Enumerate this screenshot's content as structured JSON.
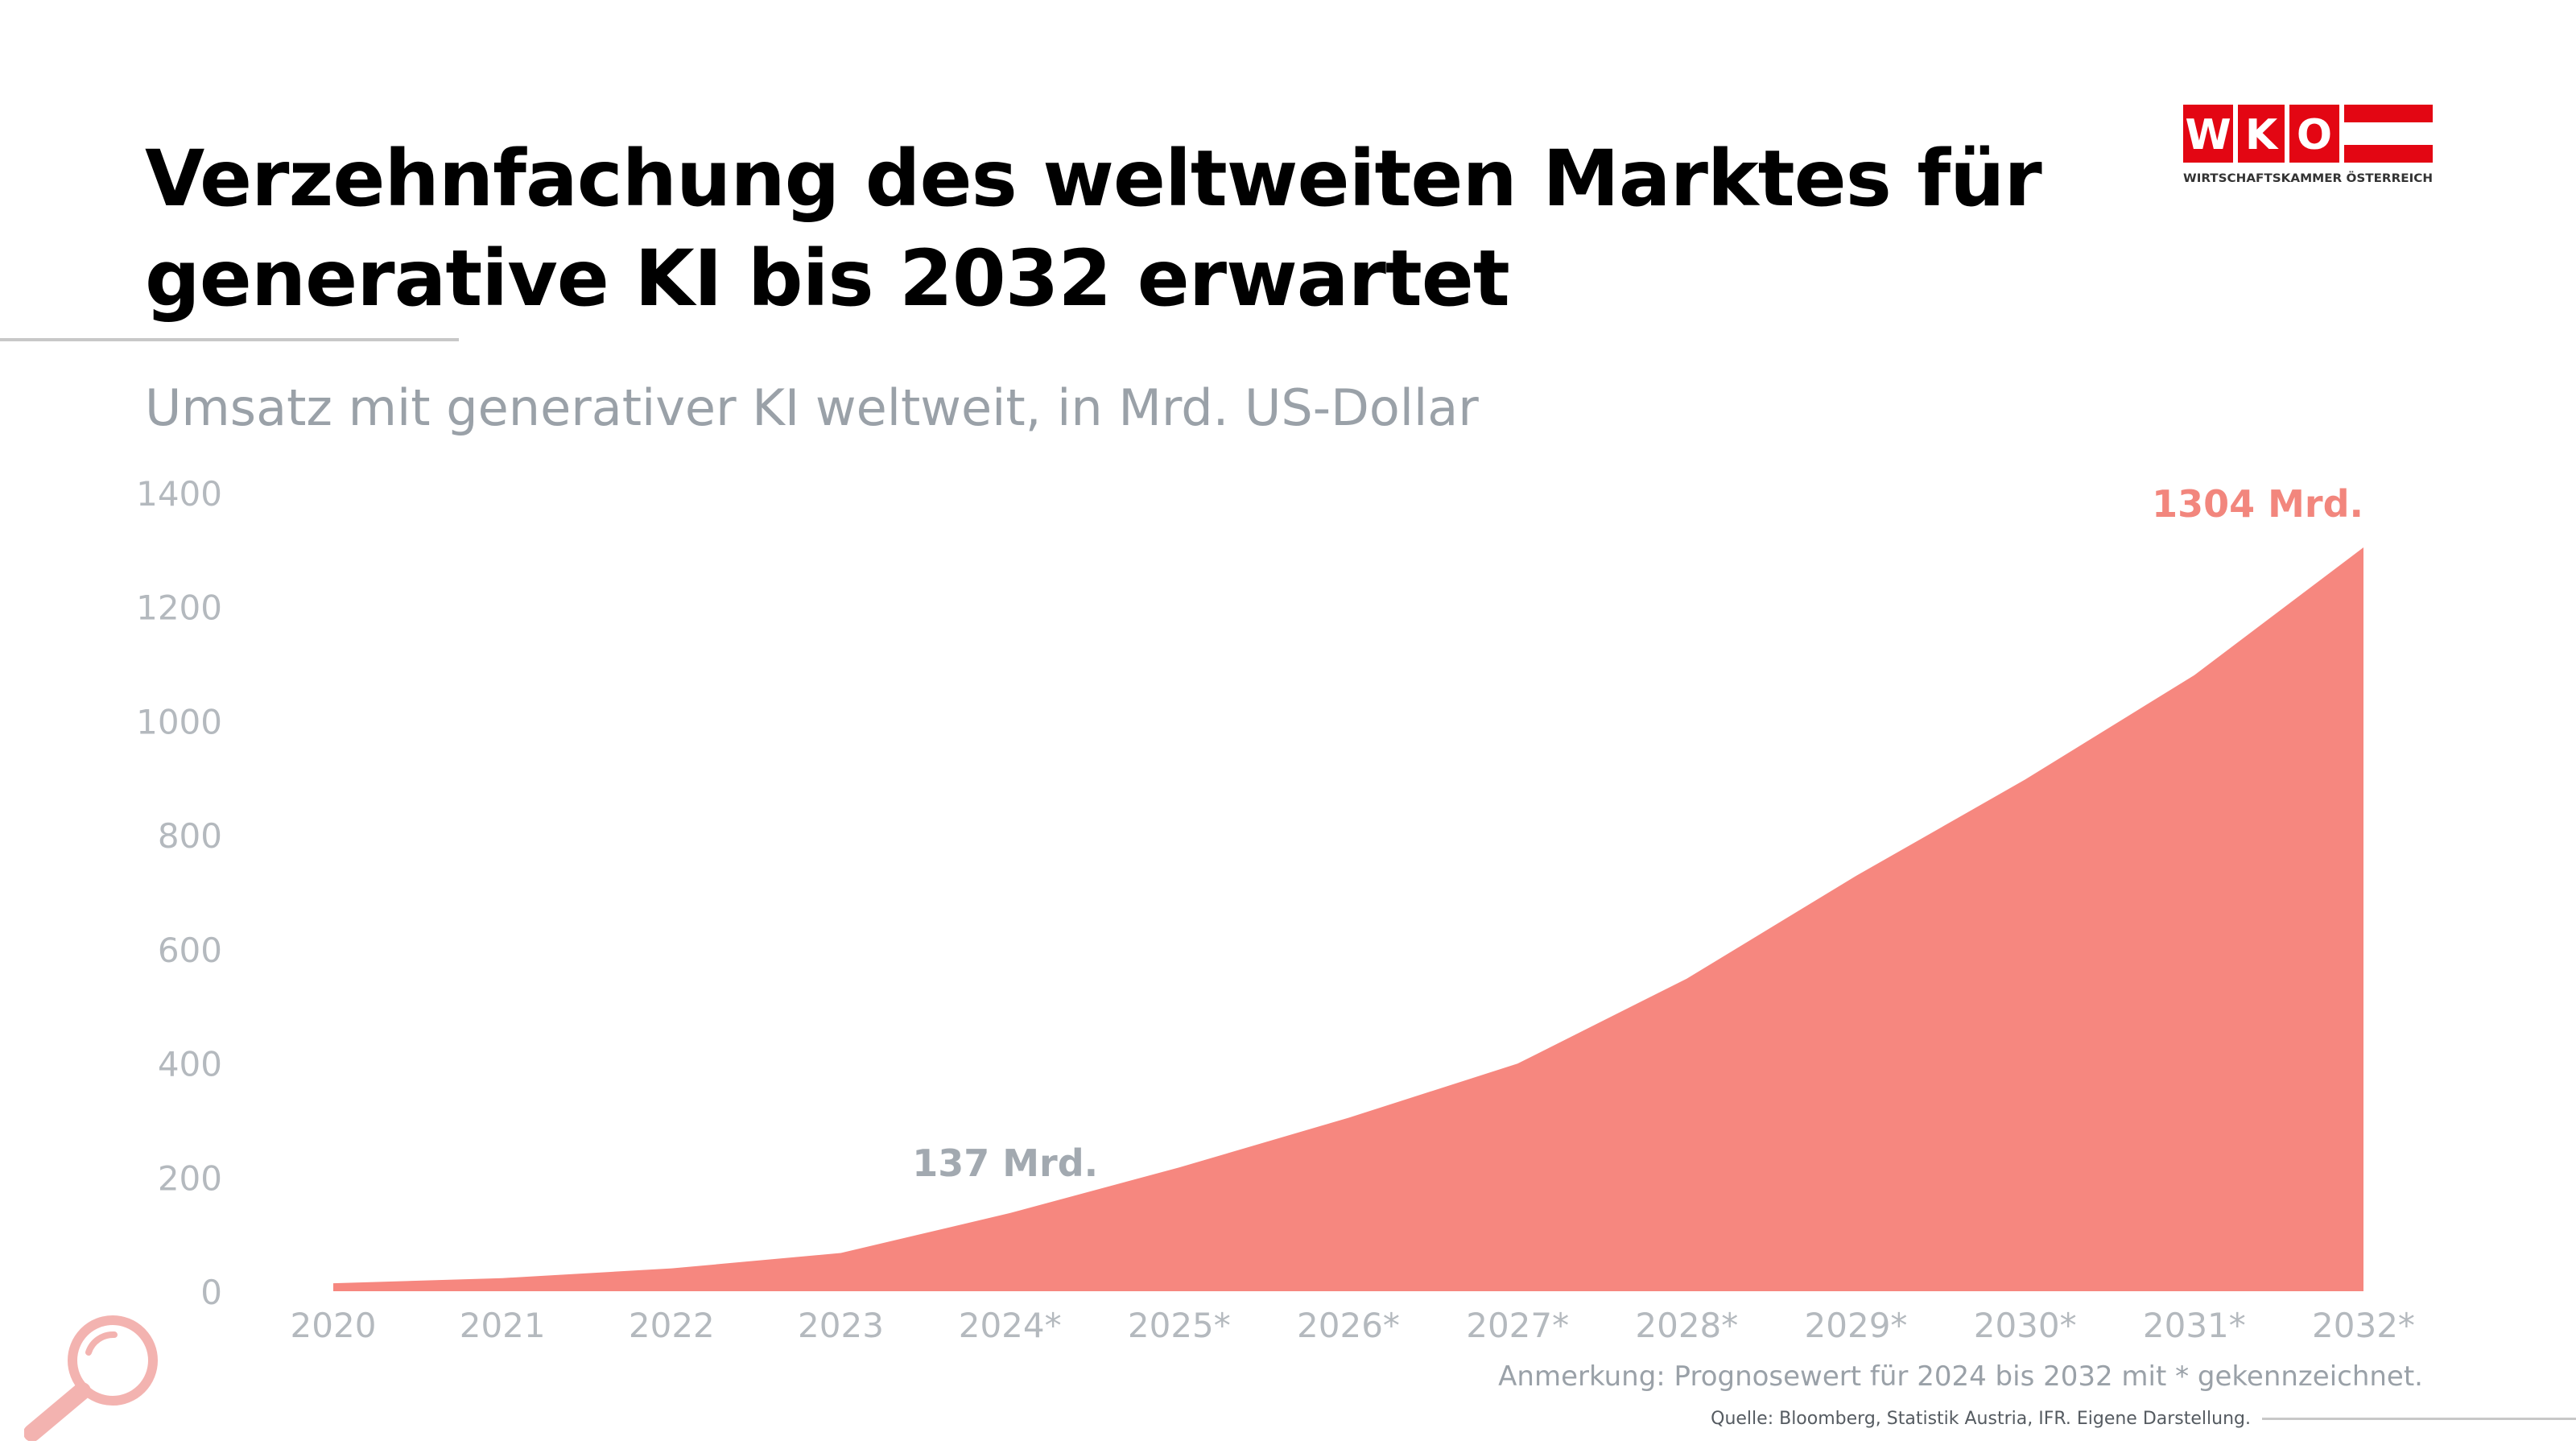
{
  "title_lines": [
    "Verzehnfachung des weltweiten Marktes für",
    "generative KI bis 2032 erwartet"
  ],
  "subtitle": "Umsatz mit generativer KI weltweit, in Mrd. US-Dollar",
  "logo": {
    "letters": [
      "W",
      "K",
      "O"
    ],
    "tagline": "WIRTSCHAFTSKAMMER ÖSTERREICH",
    "red": "#e30613"
  },
  "note": "Anmerkung: Prognosewert für 2024 bis 2032 mit * gekennzeichnet.",
  "source": "Quelle: Bloomberg, Statistik Austria, IFR. Eigene Darstellung.",
  "chart_data": {
    "type": "area",
    "title": "",
    "xlabel": "",
    "ylabel": "",
    "categories": [
      "2020",
      "2021",
      "2022",
      "2023",
      "2024*",
      "2025*",
      "2026*",
      "2027*",
      "2028*",
      "2029*",
      "2030*",
      "2031*",
      "2032*"
    ],
    "values": [
      14,
      23,
      40,
      67,
      137,
      217,
      304,
      399,
      548,
      728,
      897,
      1080,
      1304
    ],
    "ylim": [
      0,
      1400
    ],
    "yticks": [
      "0",
      "200",
      "400",
      "600",
      "800",
      "1000",
      "1200",
      "1400"
    ],
    "grid": false,
    "annotations": [
      {
        "category": "2024*",
        "text": "137 Mrd.",
        "color": "#a2a9b0"
      },
      {
        "category": "2032*",
        "text": "1304 Mrd.",
        "color": "#f2867d"
      }
    ],
    "colors": {
      "area": "#f6877f",
      "axis_text": "#b4b9be"
    }
  }
}
